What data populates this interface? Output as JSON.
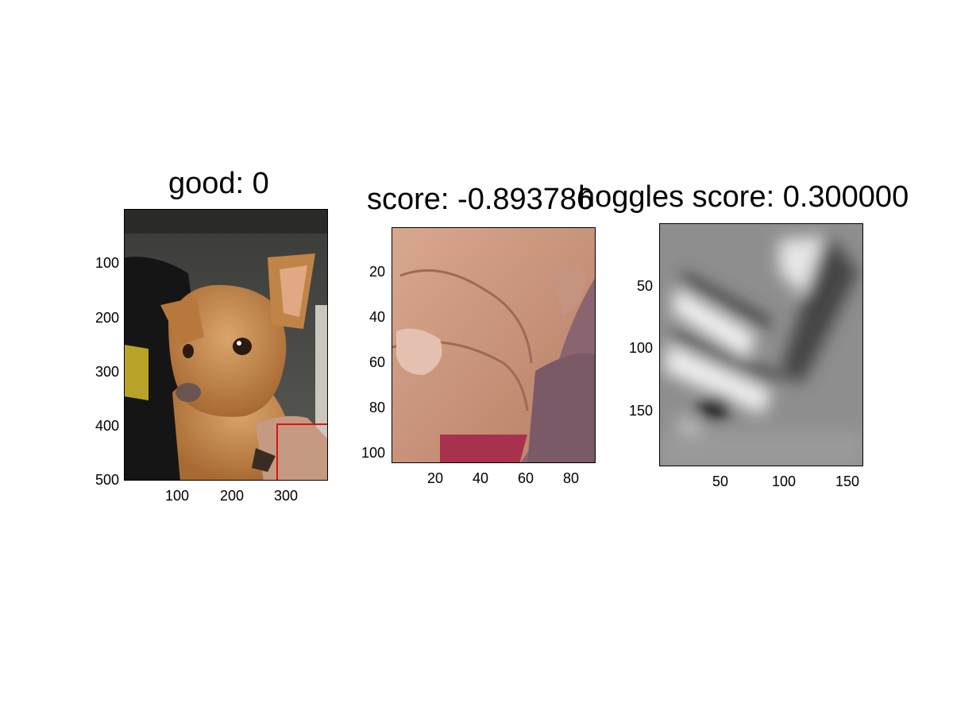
{
  "panels": [
    {
      "title": "good: 0",
      "image": "photo of a small tan chihuahua held by a person, red crop box at lower right",
      "xticks": [
        "100",
        "200",
        "300"
      ],
      "yticks": [
        "100",
        "200",
        "300",
        "400",
        "500"
      ]
    },
    {
      "title": "score: -0.893786",
      "image": "close-up crop of a hand and maroon fabric",
      "xticks": [
        "20",
        "40",
        "60",
        "80"
      ],
      "yticks": [
        "20",
        "40",
        "60",
        "80",
        "100"
      ]
    },
    {
      "title": "hoggles score: 0.300000",
      "image": "grayscale HOG reconstruction with diagonal bright bands",
      "xticks": [
        "50",
        "100",
        "150"
      ],
      "yticks": [
        "50",
        "100",
        "150"
      ]
    }
  ],
  "colors": {
    "crop_box": "#e01010",
    "background": "#ffffff"
  }
}
